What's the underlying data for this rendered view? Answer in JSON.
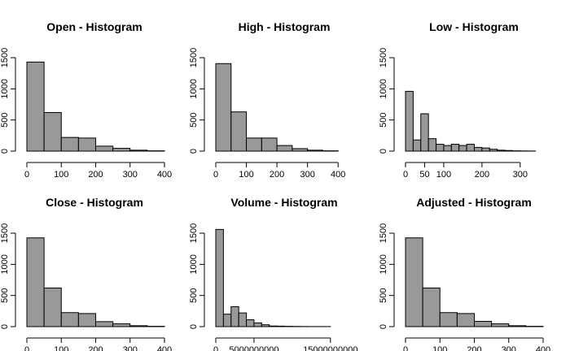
{
  "colors": {
    "bar_fill": "#999999",
    "bar_stroke": "#000000",
    "axis": "#000000",
    "background": "#ffffff"
  },
  "chart_data": [
    {
      "type": "bar",
      "title": "Open - Histogram",
      "xlabel": "",
      "ylabel": "",
      "bin_edges": [
        0,
        50,
        100,
        150,
        200,
        250,
        300,
        350,
        400
      ],
      "values": [
        1430,
        620,
        220,
        210,
        80,
        45,
        15,
        5
      ],
      "xlim": [
        0,
        400
      ],
      "ylim": [
        0,
        1500
      ],
      "xticks": [
        0,
        100,
        200,
        300,
        400
      ],
      "yticks": [
        0,
        500,
        1000,
        1500
      ],
      "xtick_labels": [
        "0",
        "100",
        "200",
        "300",
        "400"
      ],
      "ytick_labels": [
        "0",
        "500",
        "1000",
        "1500"
      ],
      "grid": false
    },
    {
      "type": "bar",
      "title": "High - Histogram",
      "xlabel": "",
      "ylabel": "",
      "bin_edges": [
        0,
        50,
        100,
        150,
        200,
        250,
        300,
        350,
        400
      ],
      "values": [
        1405,
        630,
        210,
        210,
        90,
        40,
        15,
        5
      ],
      "xlim": [
        0,
        450
      ],
      "ylim": [
        0,
        1500
      ],
      "xticks": [
        0,
        100,
        200,
        300,
        400
      ],
      "yticks": [
        0,
        500,
        1000,
        1500
      ],
      "xtick_labels": [
        "0",
        "100",
        "200",
        "300",
        "400"
      ],
      "ytick_labels": [
        "0",
        "500",
        "1000",
        "1500"
      ],
      "grid": false
    },
    {
      "type": "bar",
      "title": "Low - Histogram",
      "xlabel": "",
      "ylabel": "",
      "bin_edges": [
        0,
        20,
        40,
        60,
        80,
        100,
        120,
        140,
        160,
        180,
        200,
        220,
        240,
        260,
        280,
        300,
        320,
        340
      ],
      "values": [
        960,
        180,
        600,
        200,
        110,
        90,
        110,
        90,
        110,
        60,
        50,
        30,
        15,
        10,
        5,
        3,
        2
      ],
      "xlim": [
        0,
        360
      ],
      "ylim": [
        0,
        1500
      ],
      "xticks": [
        0,
        50,
        100,
        200,
        300
      ],
      "yticks": [
        0,
        500,
        1000,
        1500
      ],
      "xtick_labels": [
        "0",
        "50",
        "100",
        "200",
        "300"
      ],
      "ytick_labels": [
        "0",
        "500",
        "1000",
        "1500"
      ],
      "grid": false
    },
    {
      "type": "bar",
      "title": "Close - Histogram",
      "xlabel": "",
      "ylabel": "",
      "bin_edges": [
        0,
        50,
        100,
        150,
        200,
        250,
        300,
        350,
        400
      ],
      "values": [
        1425,
        620,
        225,
        210,
        80,
        45,
        15,
        5
      ],
      "xlim": [
        0,
        400
      ],
      "ylim": [
        0,
        1500
      ],
      "xticks": [
        0,
        100,
        200,
        300,
        400
      ],
      "yticks": [
        0,
        500,
        1000,
        1500
      ],
      "xtick_labels": [
        "0",
        "100",
        "200",
        "300",
        "400"
      ],
      "ytick_labels": [
        "0",
        "500",
        "1000",
        "1500"
      ],
      "grid": false
    },
    {
      "type": "bar",
      "title": "Volume - Histogram",
      "xlabel": "",
      "ylabel": "",
      "bin_edges": [
        0,
        1000000000,
        2000000000,
        3000000000,
        4000000000,
        5000000000,
        6000000000,
        7000000000,
        8000000000,
        9000000000,
        10000000000,
        11000000000,
        12000000000,
        13000000000,
        14000000000,
        15000000000
      ],
      "values": [
        1560,
        200,
        320,
        220,
        110,
        60,
        30,
        10,
        8,
        5,
        3,
        2,
        1,
        1,
        1
      ],
      "xlim": [
        0,
        18000000000
      ],
      "ylim": [
        0,
        1500
      ],
      "xticks": [
        0,
        5000000000,
        15000000000
      ],
      "yticks": [
        0,
        500,
        1000,
        1500
      ],
      "xtick_labels": [
        "0",
        "5000000000",
        "15000000000"
      ],
      "ytick_labels": [
        "0",
        "500",
        "1000",
        "1500"
      ],
      "grid": false
    },
    {
      "type": "bar",
      "title": "Adjusted - Histogram",
      "xlabel": "",
      "ylabel": "",
      "bin_edges": [
        0,
        50,
        100,
        150,
        200,
        250,
        300,
        350,
        400
      ],
      "values": [
        1425,
        620,
        225,
        210,
        85,
        45,
        15,
        5
      ],
      "xlim": [
        0,
        400
      ],
      "ylim": [
        0,
        1500
      ],
      "xticks": [
        0,
        100,
        200,
        300,
        400
      ],
      "yticks": [
        0,
        500,
        1000,
        1500
      ],
      "xtick_labels": [
        "0",
        "100",
        "200",
        "300",
        "400"
      ],
      "ytick_labels": [
        "0",
        "500",
        "1000",
        "1500"
      ],
      "grid": false
    }
  ]
}
